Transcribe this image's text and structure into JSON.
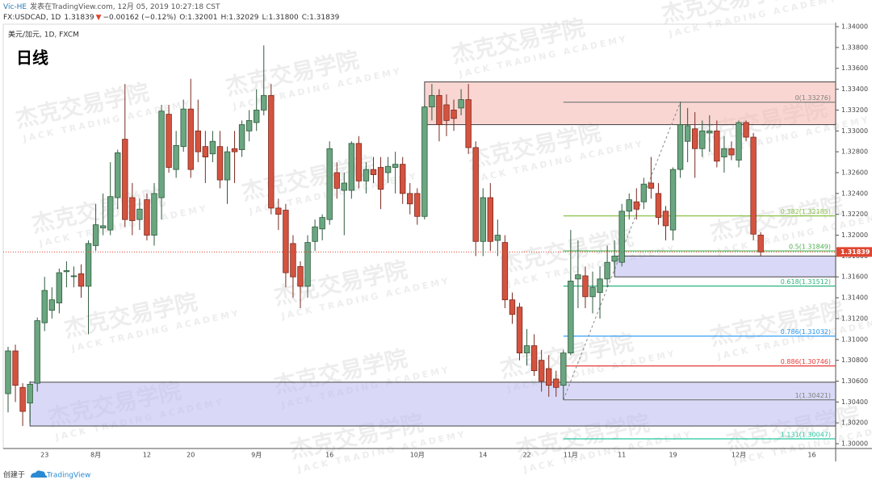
{
  "chart_data": {
    "type": "candlestick",
    "header": {
      "author": "Vic-HE",
      "published": "发表在TradingView.com, 12月 05, 2019 10:27:18 CST",
      "symbol": "FX:USDCAD, 1D",
      "last": "1.31839",
      "arrow": "▼",
      "change": "−0.00162 (−0.12%)",
      "ohlc": [
        "O:1.32001",
        "H:1.32029",
        "L:1.31800",
        "C:1.31839"
      ]
    },
    "legend_text": "美元/加元, 1D, FXCM",
    "title": "日线",
    "watermark": {
      "cn": "杰克交易学院",
      "en": "JACK TRADING ACADEMY"
    },
    "footer": {
      "prefix": "创建于",
      "brand": "TradingView"
    },
    "up_color": "#6aa680",
    "down_color": "#d4533f",
    "categories": [
      null,
      null,
      null,
      null,
      null,
      "23",
      null,
      null,
      null,
      null,
      null,
      null,
      "8月",
      null,
      null,
      null,
      null,
      null,
      null,
      "12",
      null,
      null,
      null,
      null,
      null,
      "20",
      null,
      null,
      null,
      null,
      null,
      null,
      null,
      null,
      "9月",
      null,
      null,
      null,
      null,
      null,
      null,
      null,
      null,
      null,
      "16",
      null,
      null,
      null,
      null,
      null,
      null,
      null,
      null,
      null,
      null,
      null,
      "10月",
      null,
      null,
      null,
      null,
      null,
      null,
      null,
      null,
      "14",
      null,
      null,
      null,
      null,
      null,
      "22",
      null,
      null,
      null,
      null,
      null,
      "11月",
      null,
      null,
      null,
      null,
      null,
      null,
      "11",
      null,
      null,
      null,
      null,
      null,
      null,
      "19",
      null,
      null,
      null,
      null,
      null,
      null,
      null,
      null,
      "12月",
      null,
      null,
      null,
      null,
      null,
      null,
      null,
      null,
      null,
      "16"
    ],
    "open": [
      1.3048,
      1.3089,
      1.3054,
      1.3039,
      1.3058,
      1.3116,
      1.3128,
      1.3135,
      1.3165,
      1.3161,
      1.3163,
      1.3151,
      1.319,
      1.3207,
      1.3205,
      1.3236,
      1.3292,
      1.3236,
      1.3215,
      1.3234,
      1.32,
      1.3236,
      1.3316,
      1.3263,
      1.3285,
      1.3321,
      1.33,
      1.3285,
      1.3278,
      1.3285,
      1.3253,
      1.3283,
      1.3282,
      1.33,
      1.3308,
      1.332,
      1.3334,
      1.3226,
      1.3224,
      1.3192,
      1.317,
      1.3151,
      1.3194,
      1.3206,
      1.3215,
      1.326,
      1.3243,
      1.3243,
      1.3288,
      1.3252,
      1.3263,
      1.3265,
      1.326,
      1.3265,
      1.3268,
      1.324,
      1.324,
      1.3218,
      1.3323,
      1.3334,
      1.3325,
      1.332,
      1.3322,
      1.333,
      1.3284,
      1.3194,
      1.3236,
      1.3195,
      1.3193,
      1.3138,
      1.3131,
      1.3087,
      1.3094,
      1.308,
      1.3072,
      1.3062,
      1.3056,
      1.3087,
      1.3158,
      1.3161,
      1.3141,
      1.3145,
      1.3158,
      1.3175,
      1.3174,
      1.3223,
      1.3232,
      1.3232,
      1.325,
      1.324,
      1.3223,
      1.3205,
      1.3263,
      1.329,
      1.3302,
      1.3283,
      1.3298,
      1.33,
      1.3275,
      1.3283,
      1.3272,
      1.3308,
      1.3294,
      1.32001,
      null,
      null,
      null,
      null,
      null,
      null,
      null
    ],
    "high": [
      1.3093,
      1.3095,
      1.3058,
      1.306,
      1.3121,
      1.316,
      1.315,
      1.3168,
      1.3175,
      1.317,
      1.3172,
      1.3195,
      1.323,
      1.324,
      1.327,
      1.3282,
      1.3345,
      1.325,
      1.3235,
      1.324,
      1.325,
      1.3325,
      1.3325,
      1.33,
      1.333,
      1.335,
      1.333,
      1.33,
      1.33,
      1.33,
      1.3285,
      1.33,
      1.331,
      1.332,
      1.334,
      1.3382,
      1.3345,
      1.3235,
      1.323,
      1.32,
      1.3175,
      1.32,
      1.3215,
      1.322,
      1.329,
      1.327,
      1.326,
      1.329,
      1.3295,
      1.327,
      1.3275,
      1.3275,
      1.3275,
      1.328,
      1.3275,
      1.325,
      1.3245,
      1.3325,
      1.3345,
      1.334,
      1.3335,
      1.333,
      1.334,
      1.3345,
      1.329,
      1.3245,
      1.325,
      1.3215,
      1.32,
      1.3145,
      1.3135,
      1.311,
      1.3105,
      1.309,
      1.3085,
      1.307,
      1.309,
      1.3205,
      1.3195,
      1.317,
      1.3165,
      1.317,
      1.319,
      1.3195,
      1.323,
      1.324,
      1.3245,
      1.3255,
      1.3275,
      1.325,
      1.3228,
      1.3265,
      1.3328,
      1.3322,
      1.3318,
      1.331,
      1.3315,
      1.331,
      1.3295,
      1.329,
      1.331,
      1.331,
      1.3298,
      1.32029,
      null,
      null,
      null,
      null,
      null,
      null,
      null
    ],
    "low": [
      1.303,
      1.304,
      1.3017,
      1.302,
      1.305,
      1.3108,
      1.312,
      1.3125,
      1.315,
      1.315,
      1.314,
      1.3105,
      1.3185,
      1.32,
      1.32,
      1.3225,
      1.3208,
      1.32,
      1.3205,
      1.3195,
      1.319,
      1.3215,
      1.326,
      1.3255,
      1.328,
      1.3255,
      1.327,
      1.325,
      1.327,
      1.3245,
      1.323,
      1.325,
      1.3275,
      1.329,
      1.33,
      1.3315,
      1.322,
      1.3205,
      1.315,
      1.314,
      1.313,
      1.314,
      1.3185,
      1.3195,
      1.321,
      1.3235,
      1.32,
      1.3235,
      1.3245,
      1.324,
      1.325,
      1.3225,
      1.325,
      1.324,
      1.323,
      1.322,
      1.321,
      1.3215,
      1.331,
      1.329,
      1.3295,
      1.33,
      1.3315,
      1.3278,
      1.318,
      1.318,
      1.3185,
      1.318,
      1.313,
      1.3115,
      1.308,
      1.3075,
      1.3065,
      1.305,
      1.3045,
      1.3045,
      1.3042,
      1.3085,
      1.313,
      1.313,
      1.3125,
      1.312,
      1.315,
      1.3165,
      1.317,
      1.3215,
      1.3215,
      1.3225,
      1.3235,
      1.321,
      1.3195,
      1.3195,
      1.3255,
      1.327,
      1.3255,
      1.3275,
      1.328,
      1.3265,
      1.326,
      1.3272,
      1.3265,
      1.329,
      1.3195,
      1.318,
      null,
      null,
      null,
      null,
      null,
      null,
      null
    ],
    "close": [
      1.3089,
      1.3056,
      1.3031,
      1.3057,
      1.3118,
      1.3147,
      1.3138,
      1.3164,
      1.3166,
      1.3161,
      1.3151,
      1.3192,
      1.321,
      1.3209,
      1.3237,
      1.3279,
      1.3215,
      1.3214,
      1.3225,
      1.32,
      1.324,
      1.3319,
      1.3265,
      1.3286,
      1.3321,
      1.3263,
      1.328,
      1.3275,
      1.329,
      1.3253,
      1.328,
      1.328,
      1.3306,
      1.331,
      1.332,
      1.3334,
      1.3226,
      1.322,
      1.3164,
      1.316,
      1.3151,
      1.3193,
      1.3208,
      1.3217,
      1.3283,
      1.3245,
      1.325,
      1.3288,
      1.3252,
      1.3263,
      1.3258,
      1.3244,
      1.3266,
      1.3268,
      1.324,
      1.323,
      1.3218,
      1.3323,
      1.3334,
      1.3306,
      1.331,
      1.3312,
      1.333,
      1.3284,
      1.3194,
      1.3236,
      1.3194,
      1.32,
      1.3138,
      1.3124,
      1.3087,
      1.3094,
      1.307,
      1.306,
      1.3056,
      1.3054,
      1.3087,
      1.3156,
      1.3162,
      1.3141,
      1.315,
      1.3158,
      1.3174,
      1.318,
      1.3223,
      1.3234,
      1.3225,
      1.3249,
      1.3245,
      1.3217,
      1.3209,
      1.3263,
      1.3306,
      1.3305,
      1.3283,
      1.33,
      1.33,
      1.3271,
      1.3283,
      1.3277,
      1.3308,
      1.3294,
      1.3201,
      1.31839,
      null,
      null,
      null,
      null,
      null,
      null,
      null
    ],
    "ylim": [
      1.29954,
      1.34039
    ],
    "yticks": [
      {
        "value": 1.3,
        "label": "1.30000"
      },
      {
        "value": 1.302,
        "label": "1.30200"
      },
      {
        "value": 1.304,
        "label": "1.30400"
      },
      {
        "value": 1.306,
        "label": "1.30600"
      },
      {
        "value": 1.308,
        "label": "1.30800"
      },
      {
        "value": 1.31,
        "label": "1.31000"
      },
      {
        "value": 1.312,
        "label": "1.31200"
      },
      {
        "value": 1.314,
        "label": "1.31400"
      },
      {
        "value": 1.316,
        "label": "1.31600"
      },
      {
        "value": 1.318,
        "label": "1.31800"
      },
      {
        "value": 1.32,
        "label": "1.32000"
      },
      {
        "value": 1.322,
        "label": "1.32200"
      },
      {
        "value": 1.324,
        "label": "1.32400"
      },
      {
        "value": 1.326,
        "label": "1.32600"
      },
      {
        "value": 1.328,
        "label": "1.32800"
      },
      {
        "value": 1.33,
        "label": "1.33000"
      },
      {
        "value": 1.332,
        "label": "1.33200"
      },
      {
        "value": 1.334,
        "label": "1.33400"
      },
      {
        "value": 1.336,
        "label": "1.33600"
      },
      {
        "value": 1.338,
        "label": "1.33800"
      },
      {
        "value": 1.34,
        "label": "1.34000"
      }
    ],
    "last_price": 1.31839,
    "last_price_color": "#e0452f",
    "zones": [
      {
        "from": 57,
        "top": 1.3347,
        "bottom": 1.3306,
        "color": "#f4b4ad"
      },
      {
        "from": 3,
        "top": 1.3059,
        "bottom": 1.3017,
        "color": "#b9b9f0"
      },
      {
        "from": 83,
        "top": 1.318,
        "bottom": 1.316,
        "color": "#b9b9f0"
      }
    ],
    "trend_line": {
      "x": [
        76,
        92
      ],
      "y": [
        1.30421,
        1.33276
      ],
      "color": "#888888"
    },
    "fib": {
      "from": 76,
      "levels": [
        {
          "price": 1.33276,
          "label": "0(1.33276)",
          "color": "#808080"
        },
        {
          "price": 1.32185,
          "label": "0.382(1.32185)",
          "color": "#8bc34a"
        },
        {
          "price": 1.31849,
          "label": "0.5(1.31849)",
          "color": "#4caf50"
        },
        {
          "price": 1.31512,
          "label": "0.618(1.31512)",
          "color": "#2bb57c"
        },
        {
          "price": 1.31032,
          "label": "0.786(1.31032)",
          "color": "#2196f3"
        },
        {
          "price": 1.30746,
          "label": "0.886(1.30746)",
          "color": "#e53935"
        },
        {
          "price": 1.30421,
          "label": "1(1.30421)",
          "color": "#808080"
        },
        {
          "price": 1.30047,
          "label": "1.131(1.30047)",
          "color": "#26c6a0"
        }
      ]
    }
  }
}
